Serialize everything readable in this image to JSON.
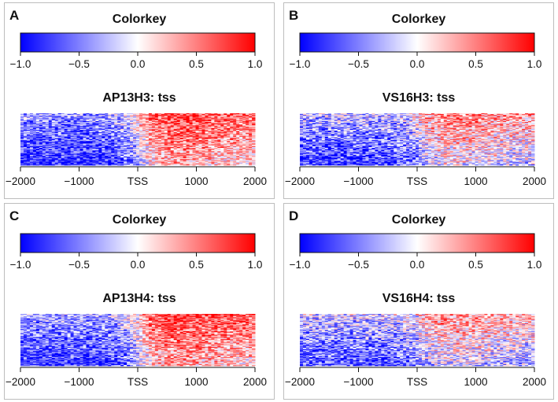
{
  "colors": {
    "low": "#0000ff",
    "mid": "#ffffff",
    "high": "#ff0000",
    "axis": "#111111"
  },
  "chart_data": [
    {
      "panel_label": "A",
      "type": "heatmap",
      "colorkey": {
        "title": "Colorkey",
        "range": [
          -1.0,
          1.0
        ],
        "ticks": [
          -1.0,
          -0.5,
          0.0,
          0.5,
          1.0
        ],
        "tick_labels": [
          "−1.0",
          "−0.5",
          "0.0",
          "0.5",
          "1.0"
        ]
      },
      "title": "AP13H3: tss",
      "x_range": [
        -2000,
        2000
      ],
      "x_ticks": [
        -2000,
        -1000,
        0,
        1000,
        2000
      ],
      "x_tick_labels": [
        "−2000",
        "−1000",
        "TSS",
        "1000",
        "2000"
      ],
      "pattern": {
        "upstream_mean": -0.55,
        "downstream_mean": 0.45,
        "noise": 0.55,
        "row_gradient": 0.5
      }
    },
    {
      "panel_label": "B",
      "type": "heatmap",
      "colorkey": {
        "title": "Colorkey",
        "range": [
          -1.0,
          1.0
        ],
        "ticks": [
          -1.0,
          -0.5,
          0.0,
          0.5,
          1.0
        ],
        "tick_labels": [
          "−1.0",
          "−0.5",
          "0.0",
          "0.5",
          "1.0"
        ]
      },
      "title": "VS16H3: tss",
      "x_range": [
        -2000,
        2000
      ],
      "x_ticks": [
        -2000,
        -1000,
        0,
        1000,
        2000
      ],
      "x_tick_labels": [
        "−2000",
        "−1000",
        "TSS",
        "1000",
        "2000"
      ],
      "pattern": {
        "upstream_mean": -0.45,
        "downstream_mean": 0.15,
        "noise": 0.6,
        "row_gradient": 0.55
      }
    },
    {
      "panel_label": "C",
      "type": "heatmap",
      "colorkey": {
        "title": "Colorkey",
        "range": [
          -1.0,
          1.0
        ],
        "ticks": [
          -1.0,
          -0.5,
          0.0,
          0.5,
          1.0
        ],
        "tick_labels": [
          "−1.0",
          "−0.5",
          "0.0",
          "0.5",
          "1.0"
        ]
      },
      "title": "AP13H4: tss",
      "x_range": [
        -2000,
        2000
      ],
      "x_ticks": [
        -2000,
        -1000,
        0,
        1000,
        2000
      ],
      "x_tick_labels": [
        "−2000",
        "−1000",
        "TSS",
        "1000",
        "2000"
      ],
      "pattern": {
        "upstream_mean": -0.5,
        "downstream_mean": 0.45,
        "noise": 0.55,
        "row_gradient": 0.5
      }
    },
    {
      "panel_label": "D",
      "type": "heatmap",
      "colorkey": {
        "title": "Colorkey",
        "range": [
          -1.0,
          1.0
        ],
        "ticks": [
          -1.0,
          -0.5,
          0.0,
          0.5,
          1.0
        ],
        "tick_labels": [
          "−1.0",
          "−0.5",
          "0.0",
          "0.5",
          "1.0"
        ]
      },
      "title": "VS16H4: tss",
      "x_range": [
        -2000,
        2000
      ],
      "x_ticks": [
        -2000,
        -1000,
        0,
        1000,
        2000
      ],
      "x_tick_labels": [
        "−2000",
        "−1000",
        "TSS",
        "1000",
        "2000"
      ],
      "pattern": {
        "upstream_mean": -0.35,
        "downstream_mean": 0.05,
        "noise": 0.6,
        "row_gradient": 0.6
      }
    }
  ]
}
